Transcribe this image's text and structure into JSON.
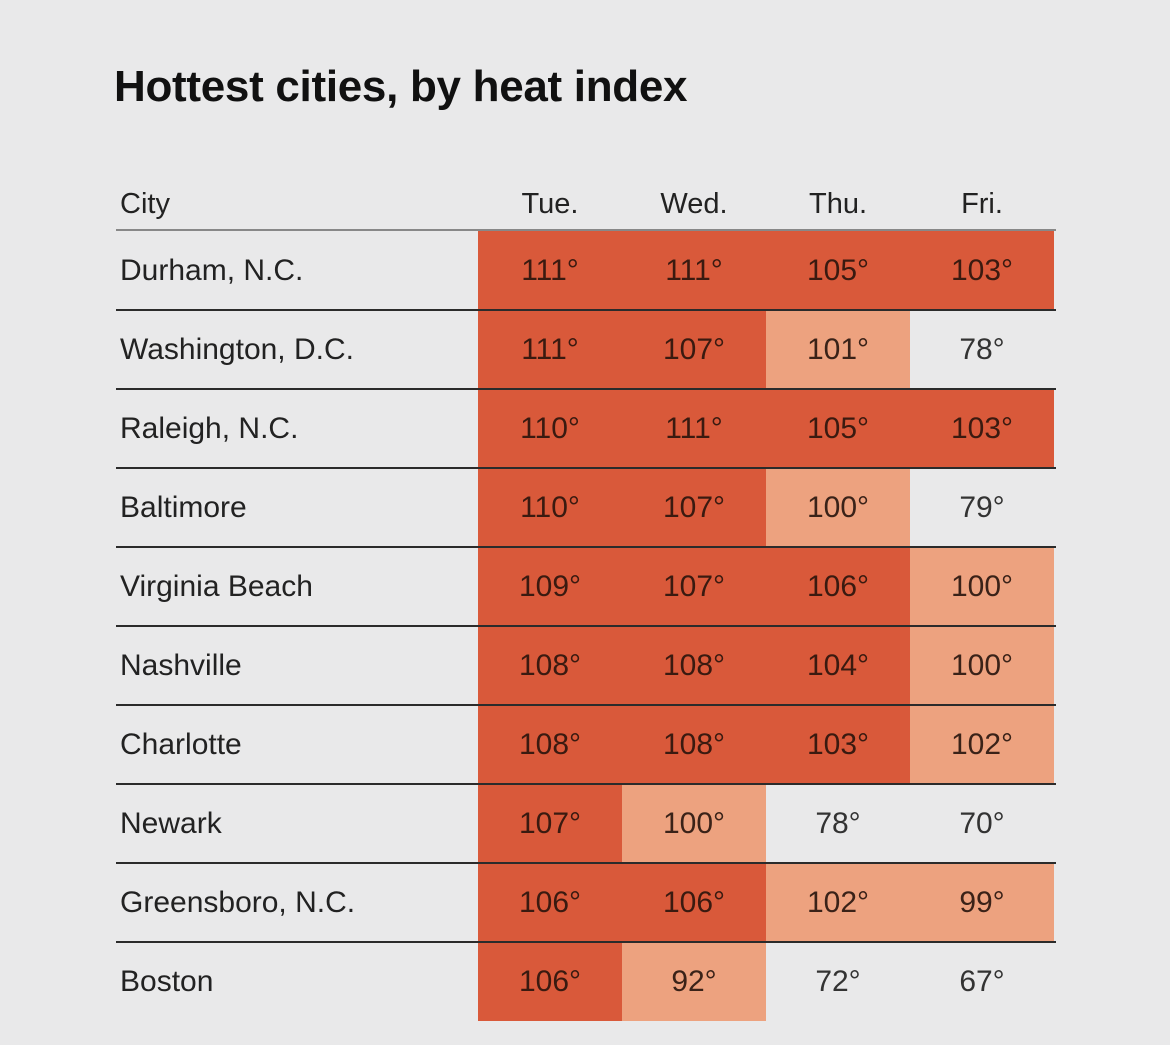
{
  "chart_data": {
    "type": "table",
    "title": "Hottest cities, by heat index",
    "columns": [
      "City",
      "Tue.",
      "Wed.",
      "Thu.",
      "Fri."
    ],
    "colors": {
      "hot": "#d9593a",
      "warm": "#eda27f",
      "none": "#e9e9ea"
    },
    "rows": [
      {
        "city": "Durham, N.C.",
        "values": [
          "111°",
          "111°",
          "105°",
          "103°"
        ],
        "levels": [
          "hot",
          "hot",
          "hot",
          "hot"
        ]
      },
      {
        "city": "Washington, D.C.",
        "values": [
          "111°",
          "107°",
          "101°",
          "78°"
        ],
        "levels": [
          "hot",
          "hot",
          "warm",
          "none"
        ]
      },
      {
        "city": "Raleigh, N.C.",
        "values": [
          "110°",
          "111°",
          "105°",
          "103°"
        ],
        "levels": [
          "hot",
          "hot",
          "hot",
          "hot"
        ]
      },
      {
        "city": "Baltimore",
        "values": [
          "110°",
          "107°",
          "100°",
          "79°"
        ],
        "levels": [
          "hot",
          "hot",
          "warm",
          "none"
        ]
      },
      {
        "city": "Virginia Beach",
        "values": [
          "109°",
          "107°",
          "106°",
          "100°"
        ],
        "levels": [
          "hot",
          "hot",
          "hot",
          "warm"
        ]
      },
      {
        "city": "Nashville",
        "values": [
          "108°",
          "108°",
          "104°",
          "100°"
        ],
        "levels": [
          "hot",
          "hot",
          "hot",
          "warm"
        ]
      },
      {
        "city": "Charlotte",
        "values": [
          "108°",
          "108°",
          "103°",
          "102°"
        ],
        "levels": [
          "hot",
          "hot",
          "hot",
          "warm"
        ]
      },
      {
        "city": "Newark",
        "values": [
          "107°",
          "100°",
          "78°",
          "70°"
        ],
        "levels": [
          "hot",
          "warm",
          "none",
          "none"
        ]
      },
      {
        "city": "Greensboro, N.C.",
        "values": [
          "106°",
          "106°",
          "102°",
          "99°"
        ],
        "levels": [
          "hot",
          "hot",
          "warm",
          "warm"
        ]
      },
      {
        "city": "Boston",
        "values": [
          "106°",
          "92°",
          "72°",
          "67°"
        ],
        "levels": [
          "hot",
          "warm",
          "none",
          "none"
        ]
      }
    ]
  }
}
